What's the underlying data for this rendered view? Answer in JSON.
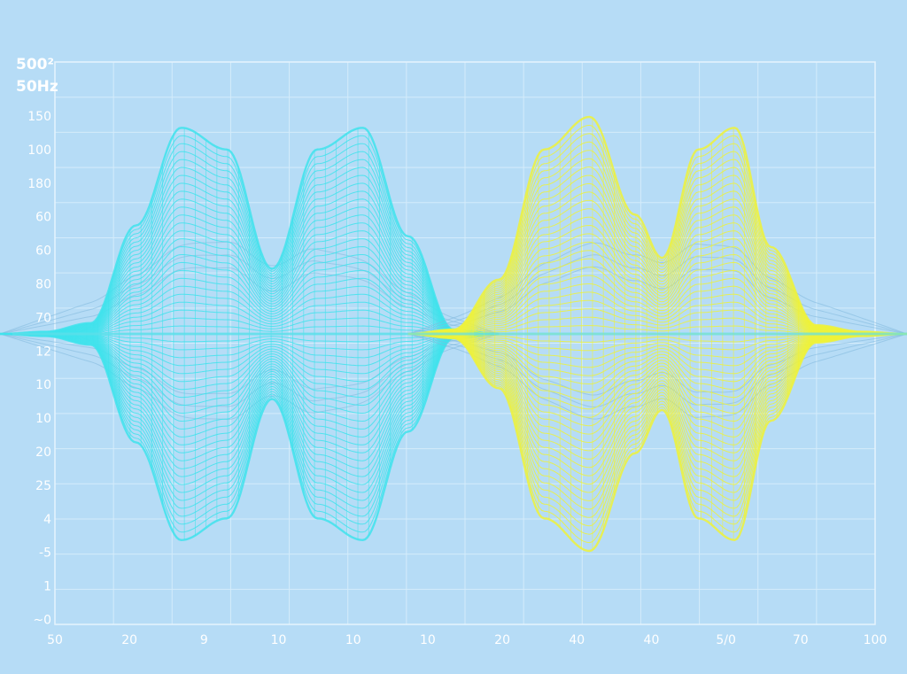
{
  "chart_data": {
    "type": "line",
    "title": "",
    "xlabel": "",
    "ylabel": "",
    "unit_labels": [
      "500²",
      "50Hz"
    ],
    "y_tick_labels": [
      "150",
      "100",
      "180",
      "60",
      "60",
      "80",
      "70",
      "12",
      "10",
      "10",
      "20",
      "25",
      "4",
      "-5",
      "1",
      "~0"
    ],
    "x_tick_labels": [
      "50",
      "20",
      "9",
      "10",
      "10",
      "10",
      "20",
      "40",
      "40",
      "5/0",
      "70",
      "100"
    ],
    "ylim": [
      -1,
      1
    ],
    "grid": true,
    "series": [
      {
        "color": "#3fe3ec",
        "lines": 26,
        "envelope": [
          [
            0,
            0
          ],
          [
            0.05,
            0.01
          ],
          [
            0.1,
            0.05
          ],
          [
            0.15,
            0.5
          ],
          [
            0.2,
            0.95
          ],
          [
            0.25,
            0.85
          ],
          [
            0.3,
            0.3
          ],
          [
            0.35,
            0.85
          ],
          [
            0.4,
            0.95
          ],
          [
            0.45,
            0.45
          ],
          [
            0.5,
            0.02
          ],
          [
            0.55,
            0
          ]
        ]
      },
      {
        "color": "#eef23a",
        "lines": 26,
        "envelope": [
          [
            0.45,
            0
          ],
          [
            0.5,
            0.02
          ],
          [
            0.55,
            0.25
          ],
          [
            0.6,
            0.85
          ],
          [
            0.65,
            1.0
          ],
          [
            0.7,
            0.55
          ],
          [
            0.73,
            0.35
          ],
          [
            0.77,
            0.85
          ],
          [
            0.81,
            0.95
          ],
          [
            0.85,
            0.4
          ],
          [
            0.9,
            0.04
          ],
          [
            0.95,
            0.01
          ],
          [
            1.0,
            0
          ]
        ]
      }
    ]
  }
}
